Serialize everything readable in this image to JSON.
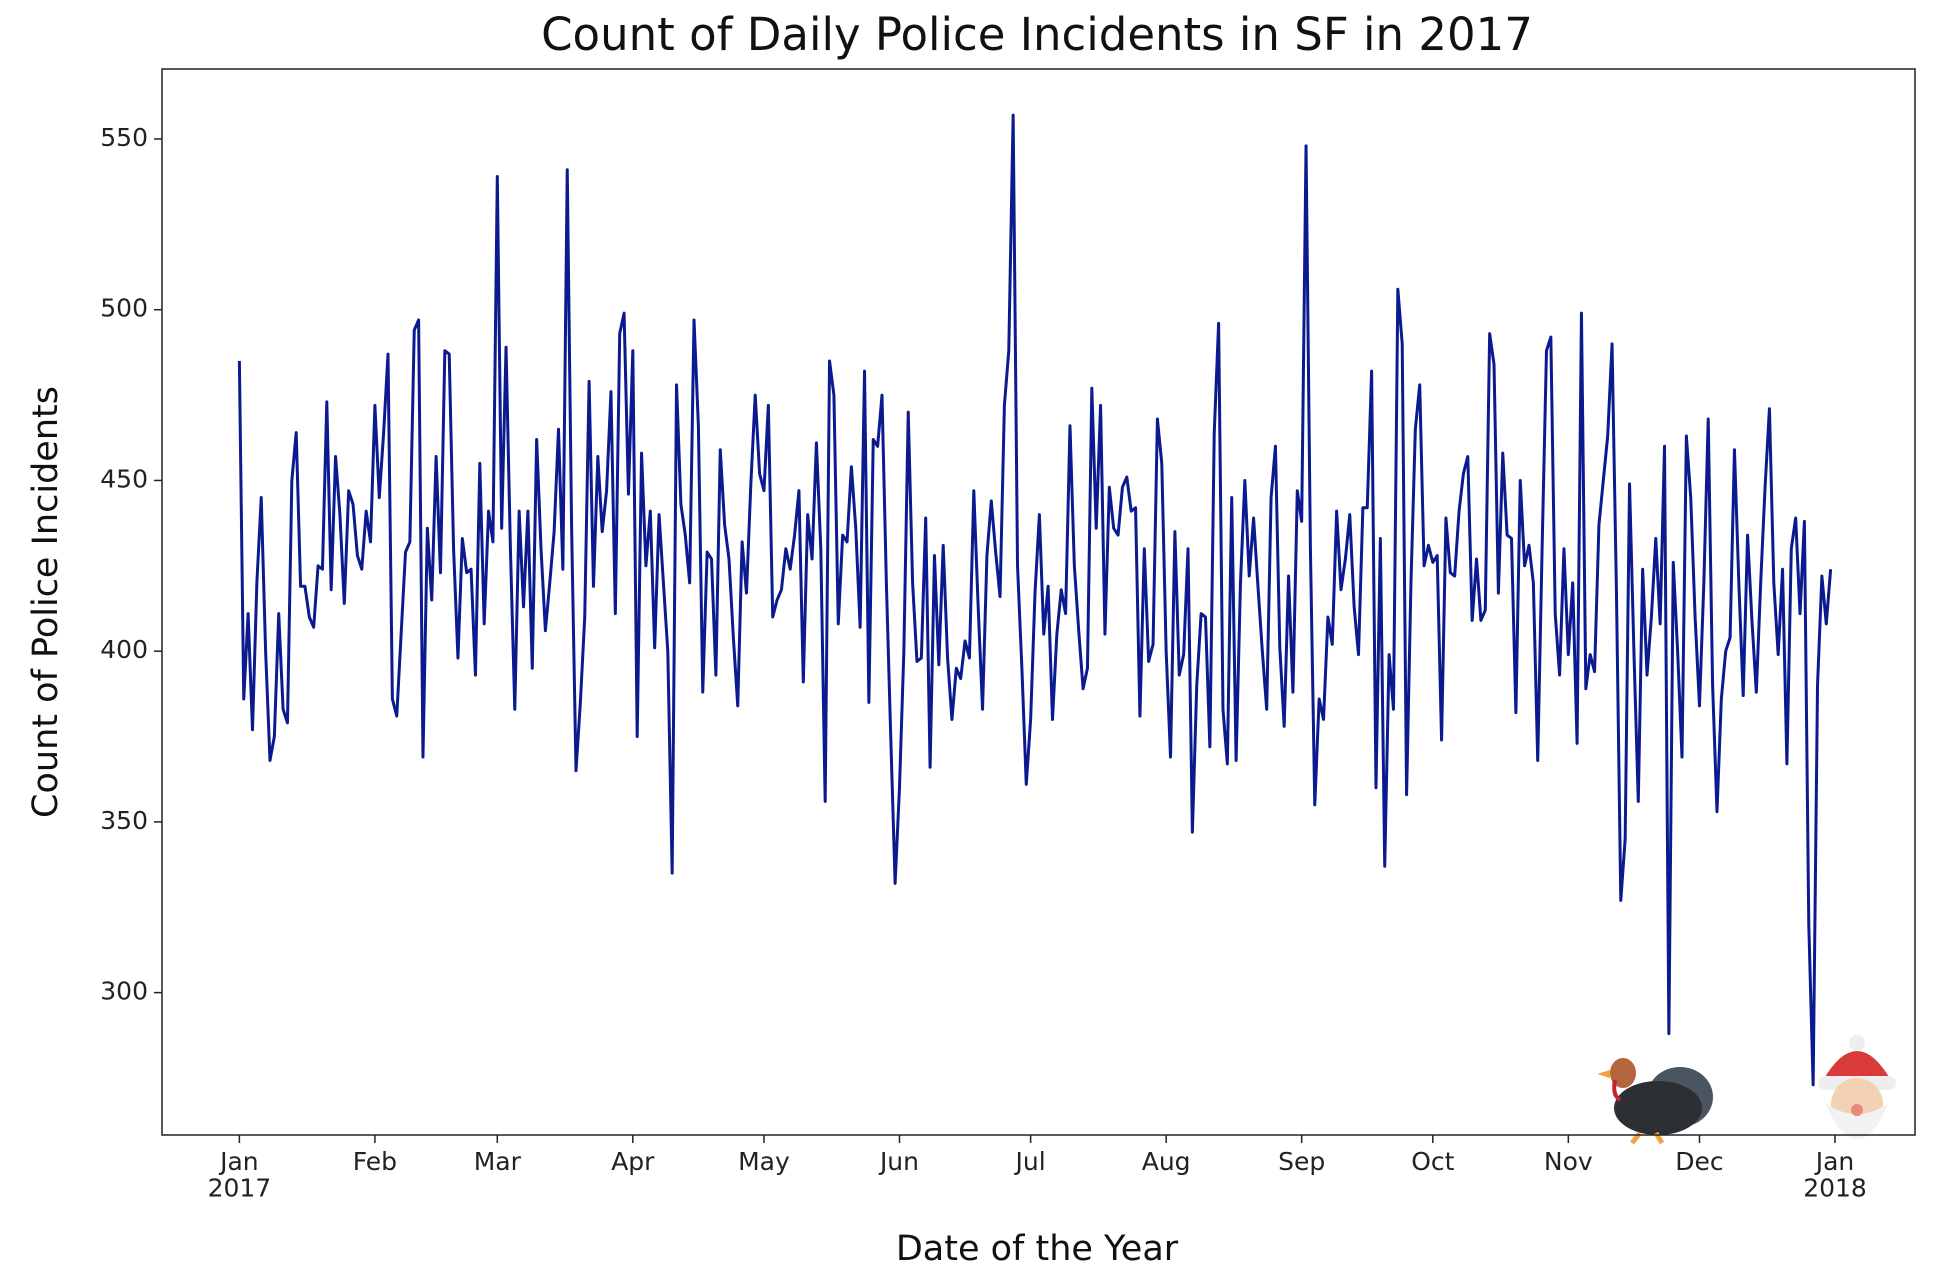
{
  "chart_data": {
    "type": "line",
    "title": "Count of Daily Police Incidents in SF in 2017",
    "x_label": "Date of the Year",
    "y_label": "Count of Police Incidents",
    "color": "#0b1a8e",
    "ylim": [
      258.3,
      570.5
    ],
    "yticks": [
      300,
      350,
      400,
      450,
      500,
      550
    ],
    "xlim": [
      -17.7,
      383.3
    ],
    "xticks": [
      {
        "value": 0,
        "label": "Jan\n2017"
      },
      {
        "value": 31,
        "label": "Feb"
      },
      {
        "value": 59,
        "label": "Mar"
      },
      {
        "value": 90,
        "label": "Apr"
      },
      {
        "value": 120,
        "label": "May"
      },
      {
        "value": 151,
        "label": "Jun"
      },
      {
        "value": 181,
        "label": "Jul"
      },
      {
        "value": 212,
        "label": "Aug"
      },
      {
        "value": 243,
        "label": "Sep"
      },
      {
        "value": 273,
        "label": "Oct"
      },
      {
        "value": 304,
        "label": "Nov"
      },
      {
        "value": 334,
        "label": "Dec"
      },
      {
        "value": 365,
        "label": "Jan\n2018"
      }
    ],
    "values": [
      485,
      386,
      411,
      377,
      420,
      445,
      400,
      368,
      375,
      411,
      383,
      379,
      450,
      464,
      419,
      419,
      410,
      407,
      425,
      424,
      473,
      418,
      457,
      440,
      414,
      447,
      443,
      428,
      424,
      441,
      432,
      472,
      445,
      464,
      487,
      386,
      381,
      405,
      429,
      432,
      494,
      497,
      369,
      436,
      415,
      457,
      423,
      488,
      487,
      430,
      398,
      433,
      423,
      424,
      393,
      455,
      408,
      441,
      432,
      539,
      436,
      489,
      430,
      383,
      441,
      413,
      441,
      395,
      462,
      430,
      406,
      420,
      435,
      465,
      424,
      541,
      436,
      365,
      385,
      410,
      479,
      419,
      457,
      435,
      447,
      476,
      411,
      493,
      499,
      446,
      488,
      375,
      458,
      425,
      441,
      401,
      440,
      420,
      400,
      335,
      478,
      443,
      434,
      420,
      497,
      466,
      388,
      429,
      427,
      393,
      459,
      437,
      427,
      404,
      384,
      432,
      417,
      449,
      475,
      452,
      447,
      472,
      410,
      415,
      418,
      430,
      424,
      434,
      447,
      391,
      440,
      427,
      461,
      430,
      356,
      485,
      475,
      408,
      434,
      432,
      454,
      436,
      407,
      482,
      385,
      462,
      460,
      475,
      420,
      375,
      332,
      360,
      400,
      470,
      420,
      397,
      398,
      439,
      366,
      428,
      396,
      431,
      398,
      380,
      395,
      392,
      403,
      398,
      447,
      413,
      383,
      428,
      444,
      429,
      416,
      472,
      488,
      557,
      425,
      395,
      361,
      380,
      417,
      440,
      405,
      419,
      380,
      405,
      418,
      411,
      466,
      425,
      406,
      389,
      395,
      477,
      436,
      472,
      405,
      448,
      436,
      434,
      448,
      451,
      441,
      442,
      381,
      430,
      397,
      402,
      468,
      455,
      400,
      369,
      435,
      393,
      399,
      430,
      347,
      390,
      411,
      410,
      372,
      464,
      496,
      383,
      367,
      445,
      368,
      420,
      450,
      422,
      439,
      419,
      400,
      383,
      445,
      460,
      401,
      378,
      422,
      388,
      447,
      438,
      548,
      430,
      355,
      386,
      380,
      410,
      402,
      441,
      418,
      427,
      440,
      413,
      399,
      442,
      442,
      482,
      360,
      433,
      337,
      399,
      383,
      506,
      490,
      358,
      420,
      465,
      478,
      425,
      431,
      426,
      428,
      374,
      439,
      423,
      422,
      441,
      452,
      457,
      409,
      427,
      409,
      412,
      493,
      484,
      417,
      458,
      434,
      433,
      382,
      450,
      425,
      431,
      420,
      368,
      430,
      488,
      492,
      411,
      393,
      430,
      399,
      420,
      373,
      499,
      389,
      399,
      394,
      437,
      450,
      463,
      490,
      418,
      327,
      345,
      449,
      400,
      356,
      424,
      393,
      410,
      433,
      408,
      460,
      288,
      426,
      400,
      369,
      463,
      445,
      410,
      384,
      420,
      468,
      390,
      353,
      386,
      400,
      404,
      459,
      420,
      387,
      434,
      409,
      388,
      420,
      448,
      471,
      420,
      399,
      424,
      367,
      430,
      439,
      411,
      438,
      320,
      273,
      390,
      422,
      408,
      424
    ]
  }
}
